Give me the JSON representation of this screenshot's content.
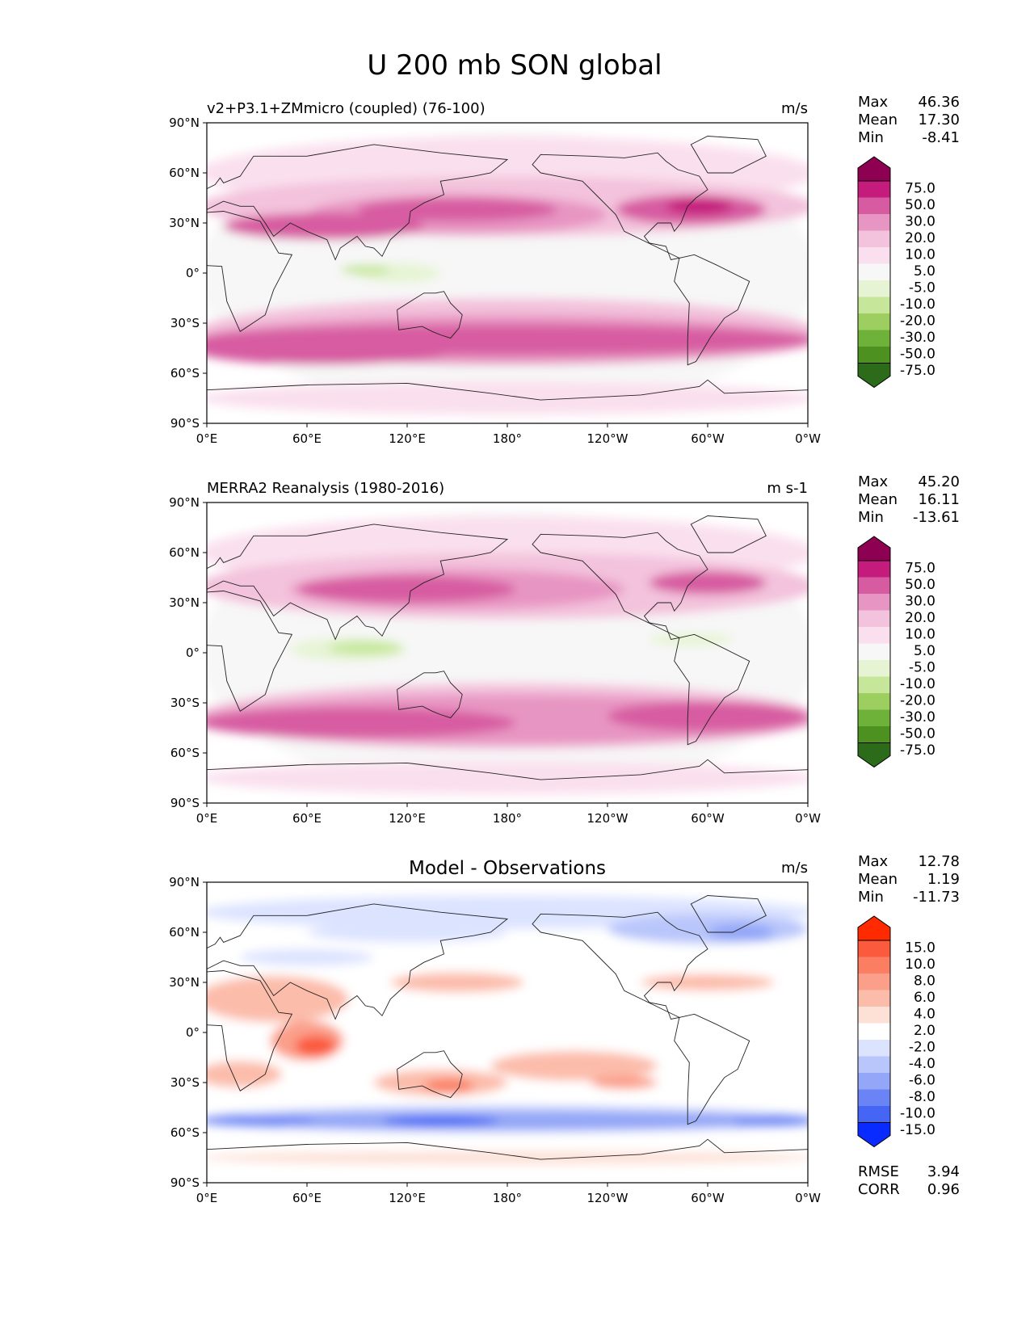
{
  "figure": {
    "title": "U 200 mb SON global"
  },
  "chart_data": [
    {
      "type": "heatmap",
      "title": "v2+P3.1+ZMmicro (coupled) (76-100)",
      "units": "m/s",
      "stats": [
        {
          "label": "Max",
          "value": "46.36"
        },
        {
          "label": "Mean",
          "value": "17.30"
        },
        {
          "label": "Min",
          "value": "-8.41"
        }
      ],
      "colorbar": {
        "labels": [
          "75.0",
          "50.0",
          "30.0",
          "20.0",
          "10.0",
          "5.0",
          "-5.0",
          "-10.0",
          "-20.0",
          "-30.0",
          "-50.0",
          "-75.0"
        ],
        "colors": [
          "#8e0152",
          "#c51b7d",
          "#d75ba1",
          "#e795c2",
          "#f3c2dc",
          "#fae0ee",
          "#f7f7f7",
          "#e6f4d4",
          "#c6e79a",
          "#9dcf60",
          "#6fb23a",
          "#4d9221",
          "#2b6b19"
        ]
      },
      "xticks": [
        "0°E",
        "60°E",
        "120°E",
        "180°",
        "120°W",
        "60°W",
        "0°W"
      ],
      "yticks": [
        "90°N",
        "60°N",
        "30°N",
        "0°",
        "30°S",
        "60°S",
        "90°S"
      ],
      "xlim": [
        0,
        360
      ],
      "ylim": [
        -90,
        90
      ]
    },
    {
      "type": "heatmap",
      "title": "MERRA2 Reanalysis (1980-2016)",
      "units": "m s-1",
      "stats": [
        {
          "label": "Max",
          "value": "45.20"
        },
        {
          "label": "Mean",
          "value": "16.11"
        },
        {
          "label": "Min",
          "value": "-13.61"
        }
      ],
      "colorbar": {
        "labels": [
          "75.0",
          "50.0",
          "30.0",
          "20.0",
          "10.0",
          "5.0",
          "-5.0",
          "-10.0",
          "-20.0",
          "-30.0",
          "-50.0",
          "-75.0"
        ],
        "colors": [
          "#8e0152",
          "#c51b7d",
          "#d75ba1",
          "#e795c2",
          "#f3c2dc",
          "#fae0ee",
          "#f7f7f7",
          "#e6f4d4",
          "#c6e79a",
          "#9dcf60",
          "#6fb23a",
          "#4d9221",
          "#2b6b19"
        ]
      },
      "xticks": [
        "0°E",
        "60°E",
        "120°E",
        "180°",
        "120°W",
        "60°W",
        "0°W"
      ],
      "yticks": [
        "90°N",
        "60°N",
        "30°N",
        "0°",
        "30°S",
        "60°S",
        "90°S"
      ],
      "xlim": [
        0,
        360
      ],
      "ylim": [
        -90,
        90
      ]
    },
    {
      "type": "heatmap",
      "title": "Model - Observations",
      "units": "m/s",
      "stats": [
        {
          "label": "Max",
          "value": "12.78"
        },
        {
          "label": "Mean",
          "value": "1.19"
        },
        {
          "label": "Min",
          "value": "-11.73"
        }
      ],
      "extra_stats": [
        {
          "label": "RMSE",
          "value": "3.94"
        },
        {
          "label": "CORR",
          "value": "0.96"
        }
      ],
      "colorbar": {
        "labels": [
          "15.0",
          "10.0",
          "8.0",
          "6.0",
          "4.0",
          "2.0",
          "-2.0",
          "-4.0",
          "-6.0",
          "-8.0",
          "-10.0",
          "-15.0"
        ],
        "colors": [
          "#ff2a00",
          "#fb5a3c",
          "#fb7d62",
          "#fb9f8a",
          "#fcbcaa",
          "#fde0d6",
          "#ffffff",
          "#dce3ff",
          "#b9c6fb",
          "#93a6f7",
          "#6b84f5",
          "#4566f4",
          "#0a2bff"
        ]
      },
      "xticks": [
        "0°E",
        "60°E",
        "120°E",
        "180°",
        "120°W",
        "60°W",
        "0°W"
      ],
      "yticks": [
        "90°N",
        "60°N",
        "30°N",
        "0°",
        "30°S",
        "60°S",
        "90°S"
      ],
      "xlim": [
        0,
        360
      ],
      "ylim": [
        -90,
        90
      ]
    }
  ]
}
